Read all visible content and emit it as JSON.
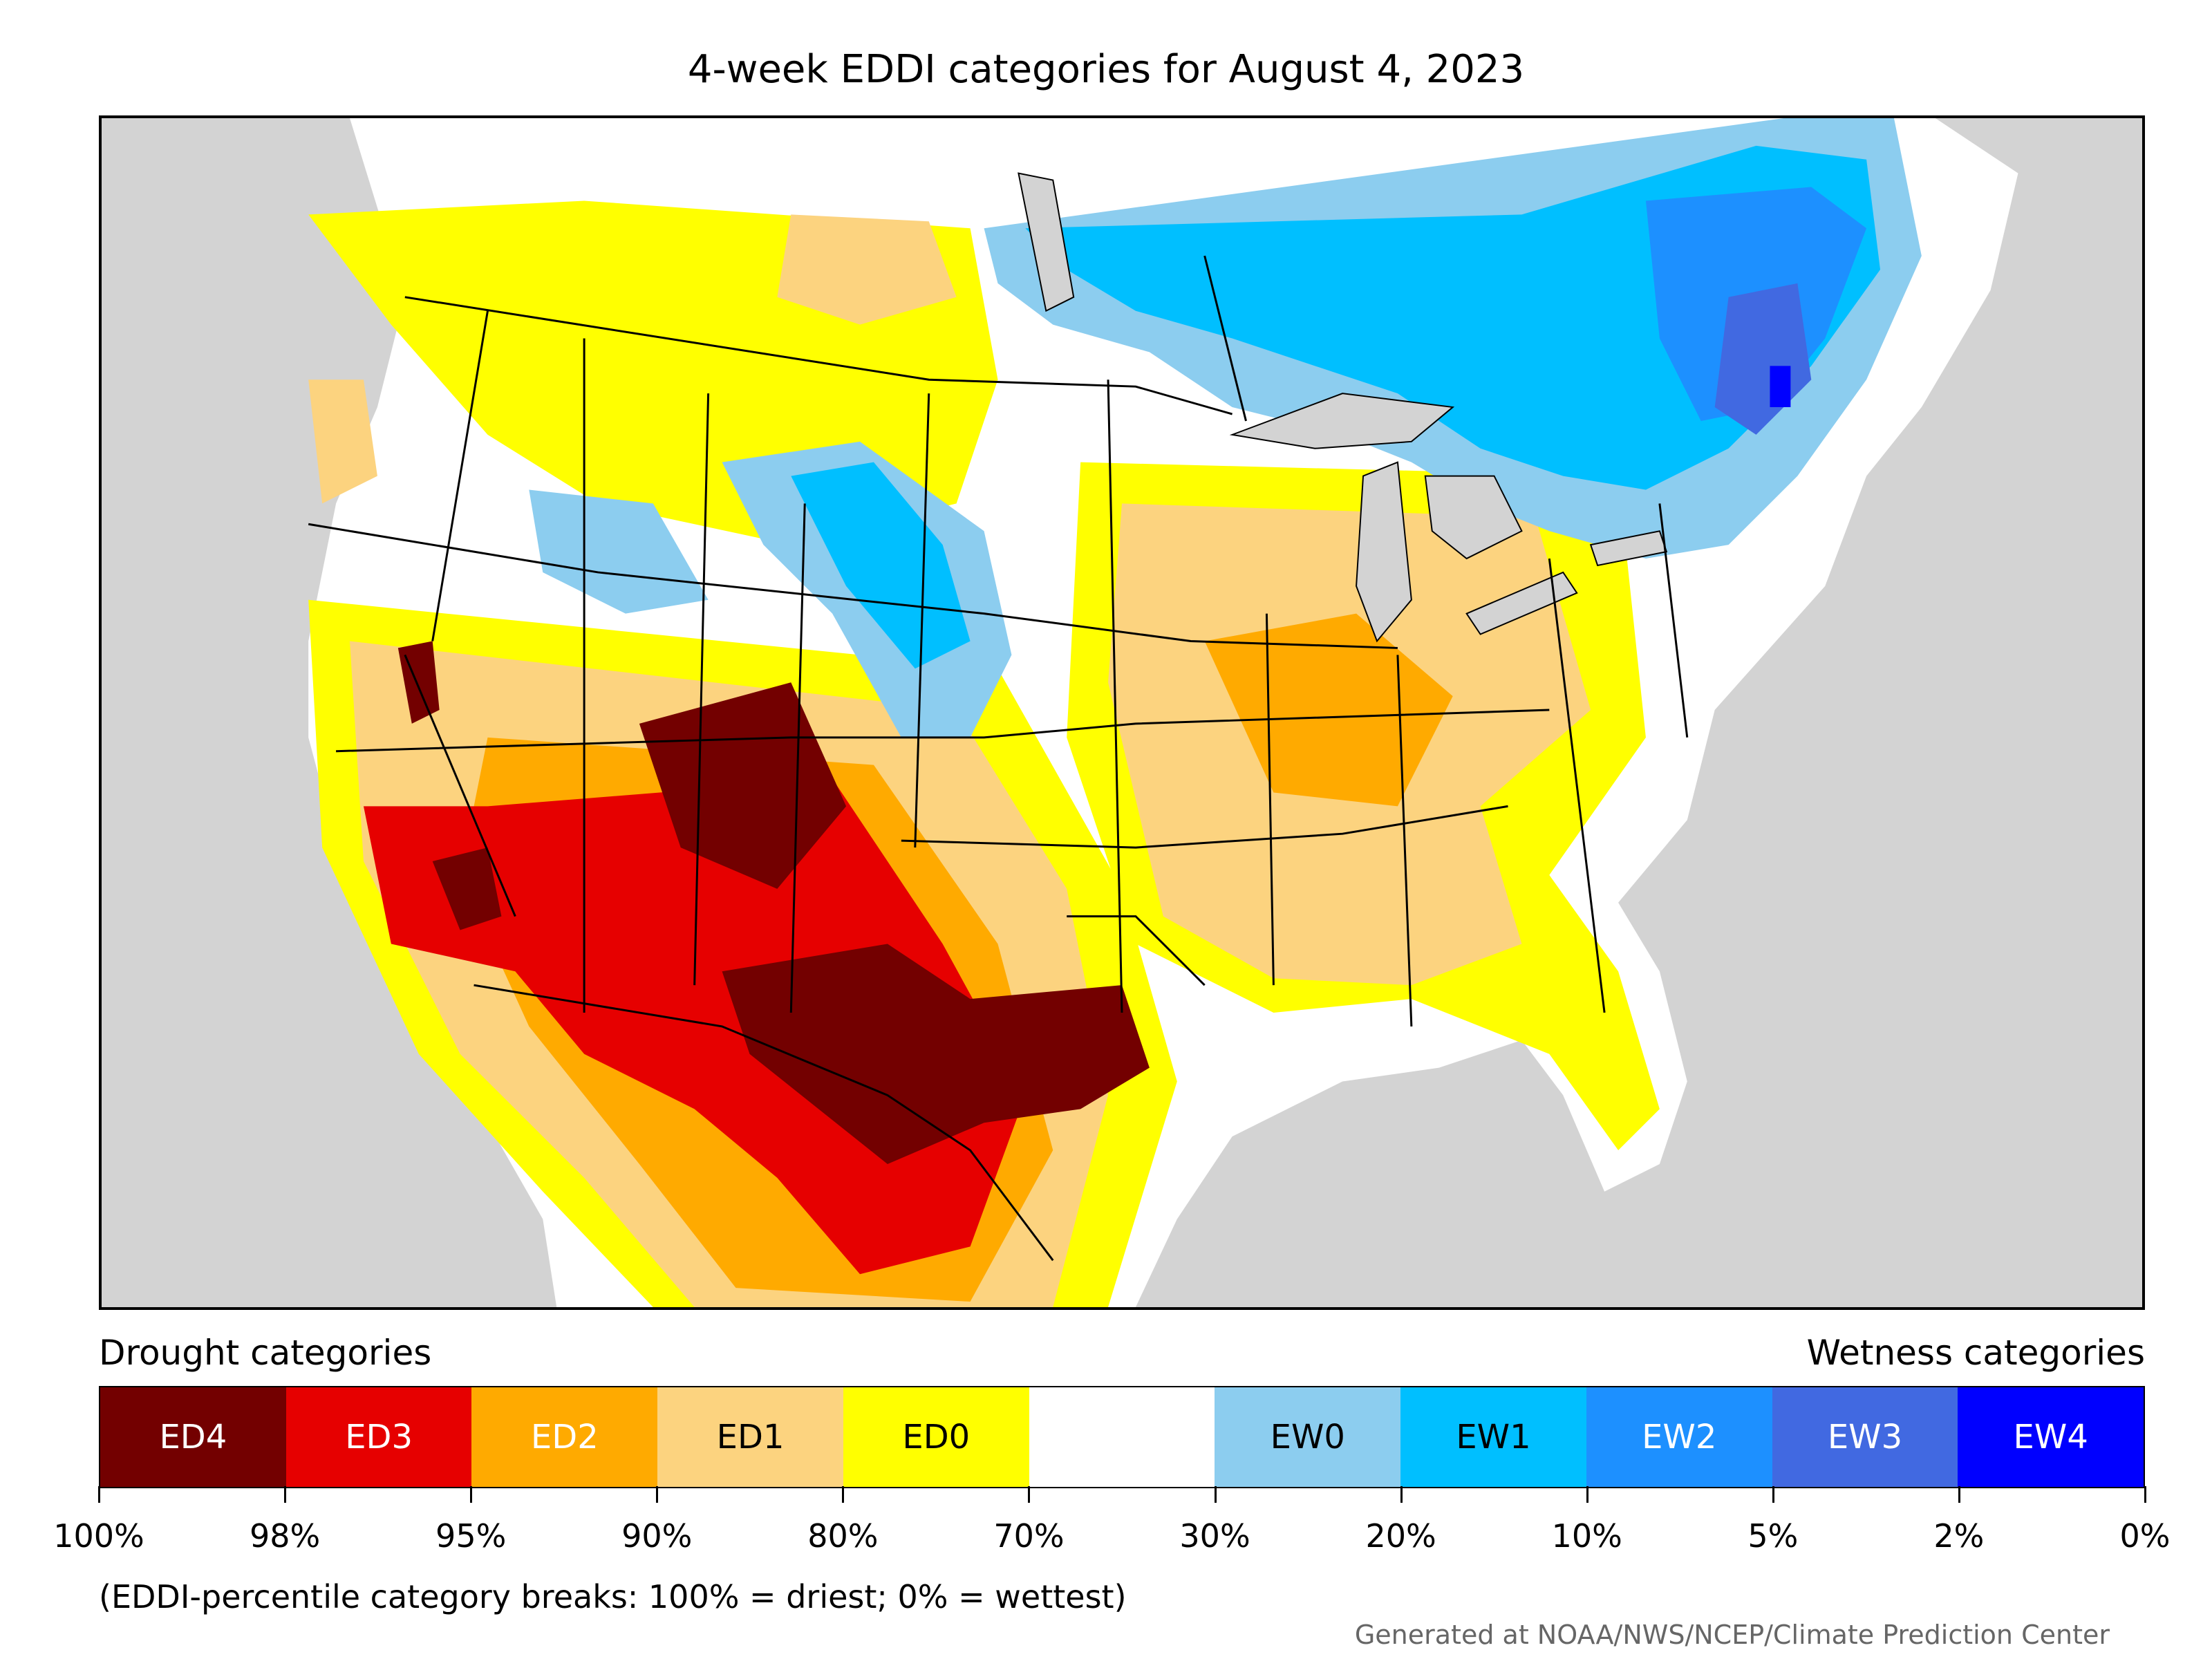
{
  "title": "4-week EDDI categories for August 4, 2023",
  "legend": {
    "left_heading": "Drought categories",
    "right_heading": "Wetness categories",
    "categories": [
      {
        "label": "ED4",
        "color": "#730000",
        "text_color": "#ffffff"
      },
      {
        "label": "ED3",
        "color": "#e60000",
        "text_color": "#ffffff"
      },
      {
        "label": "ED2",
        "color": "#ffaa00",
        "text_color": "#ffffff"
      },
      {
        "label": "ED1",
        "color": "#fcd37f",
        "text_color": "#000000"
      },
      {
        "label": "ED0",
        "color": "#ffff00",
        "text_color": "#000000"
      },
      {
        "label": "",
        "color": "#ffffff",
        "text_color": "#000000"
      },
      {
        "label": "EW0",
        "color": "#8ccdef",
        "text_color": "#000000"
      },
      {
        "label": "EW1",
        "color": "#00bfff",
        "text_color": "#000000"
      },
      {
        "label": "EW2",
        "color": "#1d90ff",
        "text_color": "#ffffff"
      },
      {
        "label": "EW3",
        "color": "#4169e1",
        "text_color": "#ffffff"
      },
      {
        "label": "EW4",
        "color": "#0000ff",
        "text_color": "#ffffff"
      }
    ],
    "tick_labels": [
      "100%",
      "98%",
      "95%",
      "90%",
      "80%",
      "70%",
      "30%",
      "20%",
      "10%",
      "5%",
      "2%",
      "0%"
    ]
  },
  "note": "(EDDI-percentile category breaks: 100% = driest; 0% = wettest)",
  "credit": "Generated at NOAA/NWS/NCEP/Climate Prediction Center",
  "colors": {
    "ocean": "#d3d3d3",
    "lakes": "#d3d3d3",
    "borders": "#000000"
  }
}
